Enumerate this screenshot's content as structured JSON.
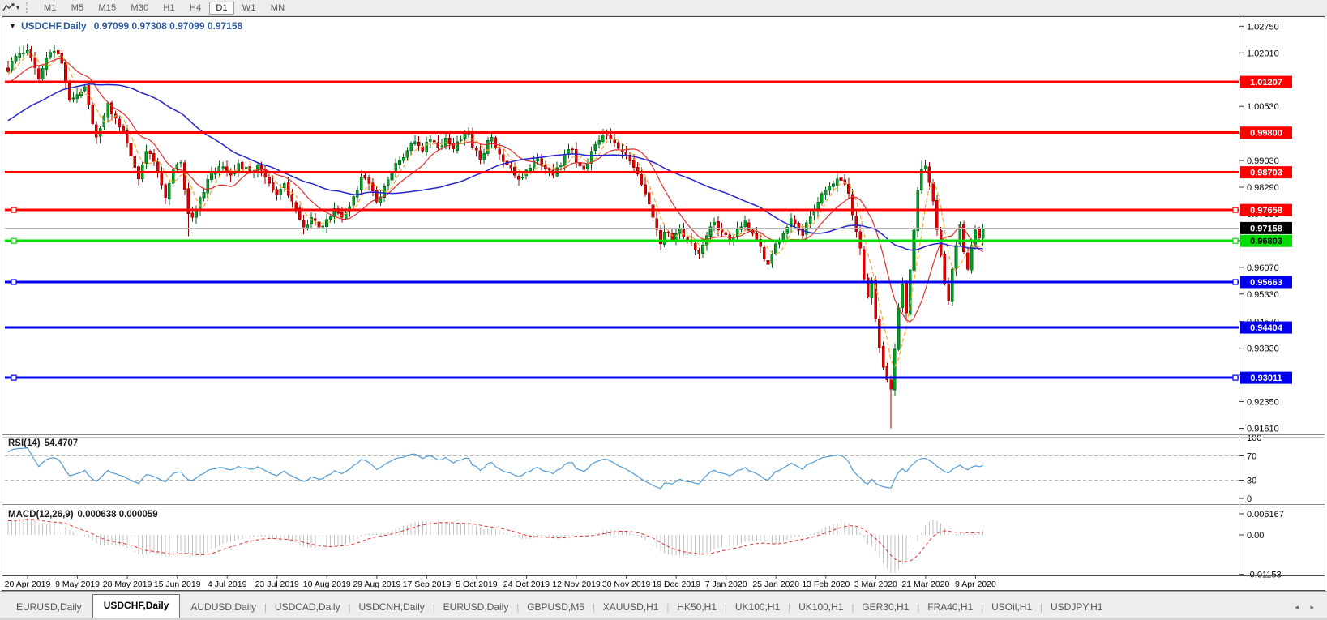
{
  "toolbar": {
    "dropdown_caret": "▾",
    "timeframes": [
      "M1",
      "M5",
      "M15",
      "M30",
      "H1",
      "H4",
      "D1",
      "W1",
      "MN"
    ],
    "active_timeframe": "D1"
  },
  "chart": {
    "collapse_arrow": "▼",
    "symbol_title": "USDCHF,Daily",
    "ohlc_text": "0.97099 0.97308 0.97099 0.97158",
    "open": "0.97099",
    "high": "0.97308",
    "low": "0.97099",
    "close": "0.97158"
  },
  "price_axis": {
    "ticks": [
      "1.02750",
      "1.02010",
      "1.01270",
      "1.00530",
      "0.99790",
      "0.99030",
      "0.98290",
      "0.97550",
      "0.96810",
      "0.96070",
      "0.95330",
      "0.94570",
      "0.93830",
      "0.93090",
      "0.92350",
      "0.91610"
    ],
    "badges": [
      {
        "text": "1.01207",
        "value": 1.01207,
        "bg": "#fe0000",
        "fg": "#ffffff"
      },
      {
        "text": "0.99800",
        "value": 0.998,
        "bg": "#fe0000",
        "fg": "#ffffff"
      },
      {
        "text": "0.98703",
        "value": 0.98703,
        "bg": "#fe0000",
        "fg": "#ffffff"
      },
      {
        "text": "0.97658",
        "value": 0.97658,
        "bg": "#fe0000",
        "fg": "#ffffff"
      },
      {
        "text": "0.97158",
        "value": 0.97158,
        "bg": "#000000",
        "fg": "#ffffff"
      },
      {
        "text": "0.96803",
        "value": 0.96803,
        "bg": "#00dd00",
        "fg": "#000000"
      },
      {
        "text": "0.95663",
        "value": 0.95663,
        "bg": "#0000ee",
        "fg": "#ffffff"
      },
      {
        "text": "0.94404",
        "value": 0.94404,
        "bg": "#0000ee",
        "fg": "#ffffff"
      },
      {
        "text": "0.93011",
        "value": 0.93011,
        "bg": "#0000ee",
        "fg": "#ffffff"
      }
    ]
  },
  "chart_data": {
    "type": "candlestick",
    "symbol": "USDCHF",
    "timeframe": "Daily",
    "title": "USDCHF,Daily",
    "y_range": [
      0.9143,
      1.0297
    ],
    "x_labels": [
      "20 Apr 2019",
      "9 May 2019",
      "28 May 2019",
      "15 Jun 2019",
      "4 Jul 2019",
      "23 Jul 2019",
      "10 Aug 2019",
      "29 Aug 2019",
      "17 Sep 2019",
      "5 Oct 2019",
      "24 Oct 2019",
      "12 Nov 2019",
      "30 Nov 2019",
      "19 Dec 2019",
      "7 Jan 2020",
      "25 Jan 2020",
      "13 Feb 2020",
      "3 Mar 2020",
      "21 Mar 2020",
      "9 Apr 2020"
    ],
    "current_price": 0.97158,
    "levels": [
      {
        "value": 1.01207,
        "color": "#fe0000",
        "kind": "resistance",
        "handles": false
      },
      {
        "value": 0.998,
        "color": "#fe0000",
        "kind": "resistance",
        "handles": false
      },
      {
        "value": 0.98703,
        "color": "#fe0000",
        "kind": "resistance",
        "handles": false
      },
      {
        "value": 0.97658,
        "color": "#fe0000",
        "kind": "resistance",
        "handles": true
      },
      {
        "value": 0.96803,
        "color": "#00dd00",
        "kind": "support",
        "handles": true
      },
      {
        "value": 0.95663,
        "color": "#0000ee",
        "kind": "support",
        "handles": true
      },
      {
        "value": 0.94404,
        "color": "#0000ee",
        "kind": "support",
        "handles": false
      },
      {
        "value": 0.93011,
        "color": "#0000ee",
        "kind": "support",
        "handles": true
      }
    ],
    "num_candles": 255,
    "close_anchors": [
      [
        0,
        1.015
      ],
      [
        2,
        1.0192
      ],
      [
        5,
        1.0208
      ],
      [
        7,
        1.016
      ],
      [
        8,
        1.0128
      ],
      [
        10,
        1.0188
      ],
      [
        12,
        1.0205
      ],
      [
        14,
        1.0172
      ],
      [
        16,
        1.007
      ],
      [
        18,
        1.0085
      ],
      [
        20,
        1.0108
      ],
      [
        22,
        1.0005
      ],
      [
        23,
        0.9968
      ],
      [
        26,
        1.0062
      ],
      [
        28,
        1.002
      ],
      [
        31,
        0.9952
      ],
      [
        34,
        0.9852
      ],
      [
        36,
        0.9928
      ],
      [
        38,
        0.99
      ],
      [
        41,
        0.98
      ],
      [
        43,
        0.988
      ],
      [
        45,
        0.9898
      ],
      [
        47,
        0.9755
      ],
      [
        48,
        0.9745
      ],
      [
        50,
        0.98
      ],
      [
        53,
        0.9868
      ],
      [
        56,
        0.9885
      ],
      [
        58,
        0.9862
      ],
      [
        60,
        0.9895
      ],
      [
        63,
        0.987
      ],
      [
        65,
        0.989
      ],
      [
        67,
        0.9858
      ],
      [
        70,
        0.9808
      ],
      [
        72,
        0.984
      ],
      [
        74,
        0.979
      ],
      [
        76,
        0.974
      ],
      [
        77,
        0.9718
      ],
      [
        79,
        0.9745
      ],
      [
        81,
        0.9718
      ],
      [
        83,
        0.974
      ],
      [
        85,
        0.977
      ],
      [
        87,
        0.9745
      ],
      [
        89,
        0.9775
      ],
      [
        91,
        0.982
      ],
      [
        92,
        0.9858
      ],
      [
        94,
        0.984
      ],
      [
        96,
        0.9788
      ],
      [
        98,
        0.983
      ],
      [
        100,
        0.987
      ],
      [
        102,
        0.9905
      ],
      [
        104,
        0.993
      ],
      [
        106,
        0.9955
      ],
      [
        108,
        0.993
      ],
      [
        110,
        0.9962
      ],
      [
        112,
        0.994
      ],
      [
        114,
        0.9965
      ],
      [
        116,
        0.9935
      ],
      [
        118,
        0.996
      ],
      [
        120,
        0.9978
      ],
      [
        121,
        0.994
      ],
      [
        123,
        0.9905
      ],
      [
        125,
        0.9958
      ],
      [
        126,
        0.9968
      ],
      [
        128,
        0.992
      ],
      [
        130,
        0.989
      ],
      [
        132,
        0.9862
      ],
      [
        134,
        0.9858
      ],
      [
        136,
        0.9882
      ],
      [
        138,
        0.9908
      ],
      [
        140,
        0.988
      ],
      [
        142,
        0.9862
      ],
      [
        144,
        0.989
      ],
      [
        145,
        0.992
      ],
      [
        147,
        0.9935
      ],
      [
        148,
        0.9898
      ],
      [
        150,
        0.9878
      ],
      [
        152,
        0.9928
      ],
      [
        154,
        0.9958
      ],
      [
        156,
        0.9972
      ],
      [
        158,
        0.9952
      ],
      [
        160,
        0.9928
      ],
      [
        162,
        0.9902
      ],
      [
        164,
        0.9865
      ],
      [
        166,
        0.981
      ],
      [
        168,
        0.9745
      ],
      [
        170,
        0.9672
      ],
      [
        171,
        0.9705
      ],
      [
        173,
        0.9685
      ],
      [
        175,
        0.9715
      ],
      [
        177,
        0.968
      ],
      [
        179,
        0.9655
      ],
      [
        180,
        0.9645
      ],
      [
        182,
        0.9695
      ],
      [
        184,
        0.9732
      ],
      [
        186,
        0.9705
      ],
      [
        188,
        0.968
      ],
      [
        190,
        0.9715
      ],
      [
        192,
        0.9735
      ],
      [
        194,
        0.97
      ],
      [
        196,
        0.9665
      ],
      [
        197,
        0.963
      ],
      [
        198,
        0.9615
      ],
      [
        200,
        0.9672
      ],
      [
        202,
        0.97
      ],
      [
        204,
        0.9742
      ],
      [
        206,
        0.971
      ],
      [
        207,
        0.9695
      ],
      [
        209,
        0.9748
      ],
      [
        211,
        0.9788
      ],
      [
        213,
        0.9822
      ],
      [
        215,
        0.9838
      ],
      [
        217,
        0.9848
      ],
      [
        219,
        0.9812
      ],
      [
        220,
        0.9752
      ],
      [
        222,
        0.966
      ],
      [
        223,
        0.9575
      ],
      [
        224,
        0.9525
      ],
      [
        225,
        0.957
      ],
      [
        226,
        0.9465
      ],
      [
        227,
        0.9385
      ],
      [
        228,
        0.933
      ],
      [
        229,
        0.9295
      ],
      [
        230,
        0.927
      ],
      [
        231,
        0.938
      ],
      [
        232,
        0.9495
      ],
      [
        233,
        0.956
      ],
      [
        234,
        0.948
      ],
      [
        235,
        0.96
      ],
      [
        236,
        0.971
      ],
      [
        237,
        0.982
      ],
      [
        238,
        0.9878
      ],
      [
        239,
        0.9888
      ],
      [
        240,
        0.9842
      ],
      [
        241,
        0.979
      ],
      [
        242,
        0.9712
      ],
      [
        243,
        0.964
      ],
      [
        244,
        0.956
      ],
      [
        245,
        0.9515
      ],
      [
        246,
        0.9602
      ],
      [
        247,
        0.9668
      ],
      [
        248,
        0.9725
      ],
      [
        249,
        0.965
      ],
      [
        250,
        0.9602
      ],
      [
        251,
        0.9668
      ],
      [
        252,
        0.971
      ],
      [
        253,
        0.9688
      ],
      [
        254,
        0.9716
      ]
    ],
    "wick_overrides": {
      "5": {
        "high": 1.0226
      },
      "47": {
        "low": 0.9693
      },
      "198": {
        "low": 0.9601
      },
      "230": {
        "low": 0.9161
      },
      "238": {
        "high": 0.9903
      },
      "245": {
        "low": 0.9503
      }
    },
    "colors": {
      "bull": "#00a524",
      "bull_edge": "#006618",
      "bear": "#e00000",
      "bear_edge": "#990000",
      "ma_fast": "#f7a928",
      "ma_mid": "#e03030",
      "ma_slow": "#2626cc",
      "rsi": "#4f9bd5",
      "macd_hist": "#c2c2c2",
      "macd_signal": "#e03030",
      "current_price_line": "#b8b8b8"
    },
    "moving_averages": [
      {
        "period": 5,
        "style": "dashed",
        "color_key": "ma_fast"
      },
      {
        "period": 13,
        "style": "solid",
        "color_key": "ma_mid"
      },
      {
        "period": 45,
        "style": "solid",
        "color_key": "ma_slow"
      }
    ],
    "indicators": {
      "rsi": {
        "label": "RSI(14)",
        "period": 14,
        "value": "54.4707",
        "ticks": [
          {
            "text": "100",
            "value": 100
          },
          {
            "text": "70",
            "value": 70
          },
          {
            "text": "30",
            "value": 30
          },
          {
            "text": "0",
            "value": 0
          }
        ],
        "bands": [
          70,
          30
        ]
      },
      "macd": {
        "label": "MACD(12,26,9)",
        "fast": 12,
        "slow": 26,
        "signal": 9,
        "values": "0.000638 0.000059",
        "ticks": [
          {
            "text": "0.006167",
            "value": 0.006167
          },
          {
            "text": "0.00",
            "value": 0
          },
          {
            "text": "-0.01153",
            "value": -0.01153
          }
        ]
      }
    }
  },
  "tabs": {
    "items": [
      "EURUSD,Daily",
      "USDCHF,Daily",
      "AUDUSD,Daily",
      "USDCAD,Daily",
      "USDCNH,Daily",
      "EURUSD,Daily",
      "GBPUSD,M5",
      "XAUUSD,H1",
      "HK50,H1",
      "UK100,H1",
      "UK100,H1",
      "GER30,H1",
      "FRA40,H1",
      "USOil,H1",
      "USDJPY,H1"
    ],
    "active_index": 1,
    "scroll_left": "◂",
    "scroll_right": "▸"
  }
}
